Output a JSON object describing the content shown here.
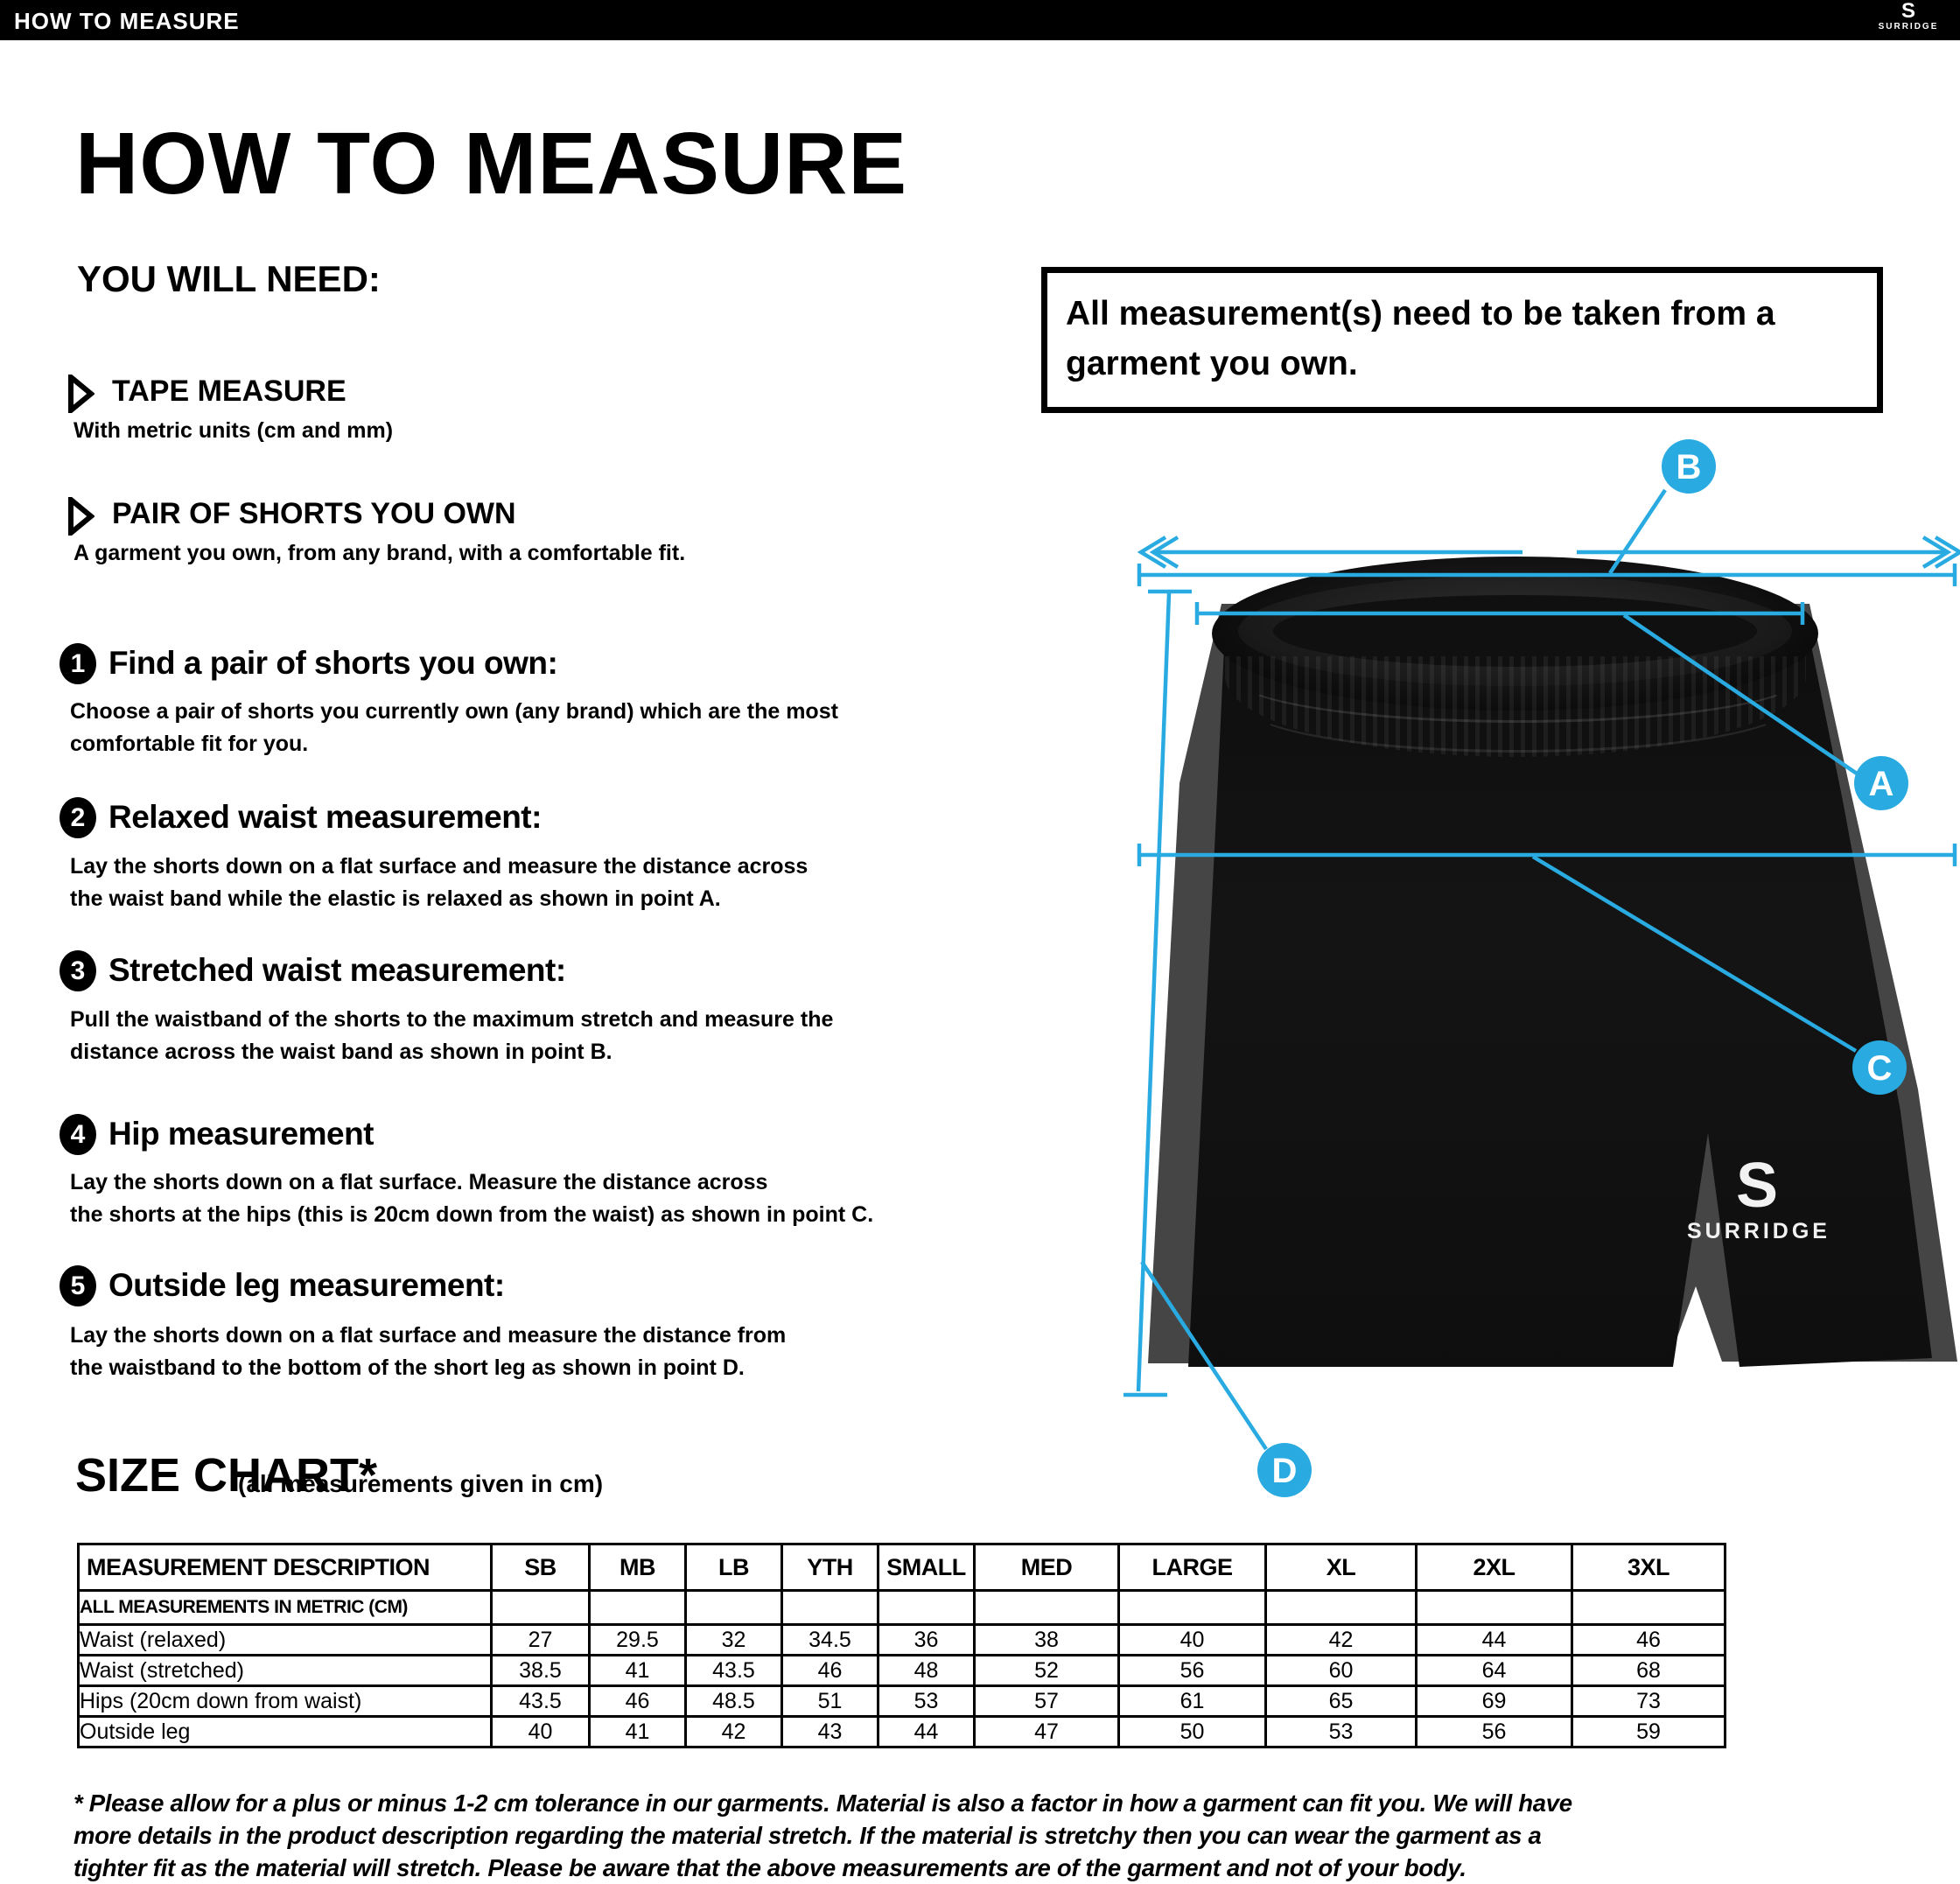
{
  "accent_color": "#29abe2",
  "top_bar": {
    "title": "HOW TO MEASURE",
    "brand_logo_letter": "S",
    "brand_name": "SURRIDGE"
  },
  "page_title": "HOW TO MEASURE",
  "you_will_need": {
    "heading": "YOU WILL NEED:",
    "items": [
      {
        "label": "TAPE MEASURE",
        "note": "With metric units (cm and mm)"
      },
      {
        "label": "PAIR OF SHORTS YOU OWN",
        "note": "A garment you own, from any brand, with a comfortable fit."
      }
    ]
  },
  "note_box": {
    "text": [
      "All measurement(s) need to be taken from a",
      "garment you own."
    ]
  },
  "steps": [
    {
      "num": "1",
      "title": "Find a pair of shorts you own:",
      "body": [
        "Choose a pair of shorts you currently own (any brand) which are the most",
        "comfortable fit for you."
      ]
    },
    {
      "num": "2",
      "title": "Relaxed waist measurement:",
      "body": [
        "Lay the shorts down on a flat surface and measure the distance across",
        "the waist band while the elastic is relaxed as shown in point A."
      ]
    },
    {
      "num": "3",
      "title": "Stretched waist measurement:",
      "body": [
        "Pull the waistband of the shorts to the maximum stretch and measure the",
        "distance across the waist band as shown in point B."
      ]
    },
    {
      "num": "4",
      "title": "Hip measurement",
      "body": [
        "Lay the shorts down on a flat surface. Measure the distance across",
        "the shorts at the hips (this is 20cm down from the waist)  as shown in point C."
      ]
    },
    {
      "num": "5",
      "title": "Outside leg measurement:",
      "body": [
        "Lay the shorts down on a flat surface and measure the distance from",
        "the waistband to the bottom of the short leg as shown in point D."
      ]
    }
  ],
  "diagram": {
    "labels": {
      "a": "A",
      "b": "B",
      "c": "C",
      "d": "D"
    },
    "garment_logo": {
      "letter": "S",
      "text": "SURRIDGE"
    }
  },
  "size_chart": {
    "title": "SIZE CHART*",
    "subtitle": "(all measurements given in cm)",
    "columns": [
      "MEASUREMENT DESCRIPTION",
      "SB",
      "MB",
      "LB",
      "YTH",
      "SMALL",
      "MED",
      "LARGE",
      "XL",
      "2XL",
      "3XL"
    ],
    "metric_note": "ALL MEASUREMENTS IN METRIC (CM)",
    "rows": [
      {
        "label": "Waist (relaxed)",
        "values": [
          "27",
          "29.5",
          "32",
          "34.5",
          "36",
          "38",
          "40",
          "42",
          "44",
          "46"
        ]
      },
      {
        "label": "Waist (stretched)",
        "values": [
          "38.5",
          "41",
          "43.5",
          "46",
          "48",
          "52",
          "56",
          "60",
          "64",
          "68"
        ]
      },
      {
        "label": "Hips (20cm down from waist)",
        "values": [
          "43.5",
          "46",
          "48.5",
          "51",
          "53",
          "57",
          "61",
          "65",
          "69",
          "73"
        ]
      },
      {
        "label": "Outside leg",
        "values": [
          "40",
          "41",
          "42",
          "43",
          "44",
          "47",
          "50",
          "53",
          "56",
          "59"
        ]
      }
    ]
  },
  "footnote": [
    "* Please allow for a plus or minus 1-2 cm tolerance in our garments. Material is also a factor in how a garment can fit you. We will have",
    "more details in the product description regarding the material stretch.  If the material is stretchy then you can wear the garment as a",
    "tighter fit as the material will stretch.  Please be aware that the above measurements are of the garment and not of your body."
  ]
}
